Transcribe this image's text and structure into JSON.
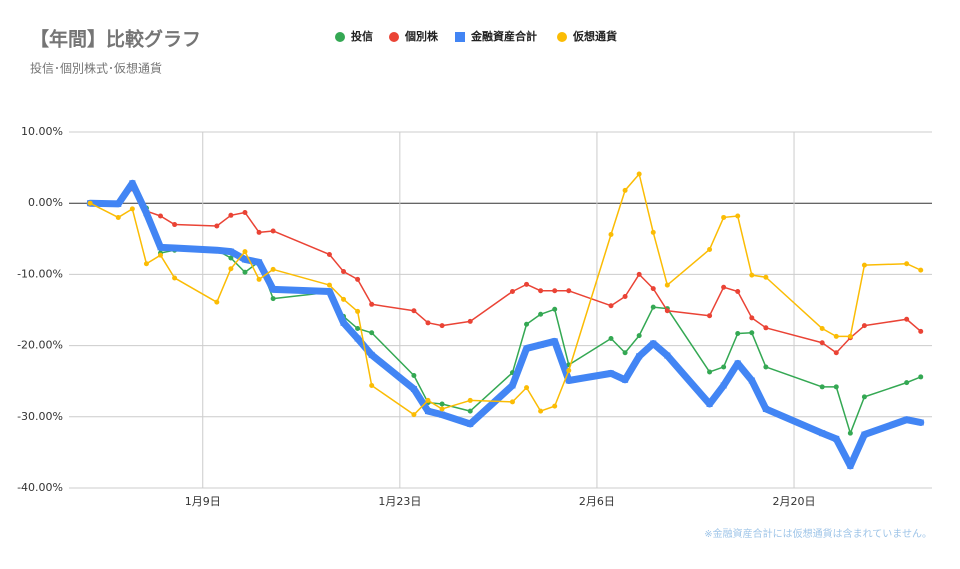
{
  "chart_data": {
    "type": "line",
    "title": "【年間】比較グラフ",
    "subtitle": "投信･個別株式･仮想通貨",
    "note": "※金融資産合計には仮想通貨は含まれていません。",
    "x": [
      1,
      3,
      4,
      5,
      6,
      7,
      10,
      11,
      12,
      13,
      14,
      18,
      19,
      20,
      21,
      24,
      25,
      26,
      28,
      31,
      32,
      33,
      34,
      35,
      38,
      39,
      40,
      41,
      42,
      45,
      46,
      47,
      48,
      49,
      53,
      54,
      55,
      56,
      59,
      60
    ],
    "xlim": [
      -0.5,
      60.8
    ],
    "xticks": [
      {
        "value": 9,
        "label": "1月9日"
      },
      {
        "value": 23,
        "label": "1月23日"
      },
      {
        "value": 37,
        "label": "2月6日"
      },
      {
        "value": 51,
        "label": "2月20日"
      }
    ],
    "ylim": [
      -40,
      10
    ],
    "yticks": [
      {
        "value": -40,
        "label": "-40.00%"
      },
      {
        "value": -30,
        "label": "-30.00%"
      },
      {
        "value": -20,
        "label": "-20.00%"
      },
      {
        "value": -10,
        "label": "-10.00%"
      },
      {
        "value": 0,
        "label": "0.00%"
      },
      {
        "value": 10,
        "label": "10.00%"
      }
    ],
    "grid": true,
    "legend": "top",
    "series": [
      {
        "name": "投信",
        "color": "#34a853",
        "marker": "circle",
        "width": 1.5,
        "values": [
          0,
          -0.1,
          2.5,
          -0.7,
          -7.0,
          -6.6,
          -6.6,
          -7.7,
          -9.7,
          -8.2,
          -13.4,
          -12.5,
          -15.9,
          -17.6,
          -18.2,
          -24.2,
          -28.0,
          -28.2,
          -29.2,
          -23.8,
          -17.0,
          -15.6,
          -14.9,
          -22.7,
          -19.0,
          -21.0,
          -18.6,
          -14.6,
          -14.8,
          -23.7,
          -23.0,
          -18.3,
          -18.2,
          -23.0,
          -25.8,
          -25.8,
          -32.3,
          -27.2,
          -25.2,
          -24.4
        ]
      },
      {
        "name": "個別株",
        "color": "#ea4335",
        "marker": "circle",
        "width": 1.5,
        "values": [
          0,
          -0.1,
          2.0,
          -1.1,
          -1.8,
          -3.0,
          -3.2,
          -1.7,
          -1.3,
          -4.1,
          -3.9,
          -7.2,
          -9.6,
          -10.7,
          -14.2,
          -15.1,
          -16.8,
          -17.2,
          -16.6,
          -12.4,
          -11.4,
          -12.3,
          -12.3,
          -12.3,
          -14.4,
          -13.1,
          -10.0,
          -12.0,
          -15.1,
          -15.8,
          -11.8,
          -12.4,
          -16.1,
          -17.5,
          -19.6,
          -21.0,
          -18.9,
          -17.2,
          -16.3,
          -18.0
        ]
      },
      {
        "name": "金融資産合計",
        "color": "#4285f4",
        "marker": "square",
        "width": 7,
        "values": [
          0,
          -0.1,
          2.8,
          -1.4,
          -6.2,
          -6.3,
          -6.6,
          -6.8,
          -7.9,
          -8.3,
          -12.1,
          -12.4,
          -16.8,
          -19.0,
          -21.3,
          -26.1,
          -29.2,
          -29.7,
          -31.0,
          -25.6,
          -20.4,
          -19.9,
          -19.4,
          -24.9,
          -23.9,
          -24.8,
          -21.5,
          -19.7,
          -21.4,
          -28.2,
          -25.6,
          -22.5,
          -24.9,
          -28.9,
          -32.3,
          -33.1,
          -36.9,
          -32.5,
          -30.4,
          -30.8
        ]
      },
      {
        "name": "仮想通貨",
        "color": "#fbbc04",
        "marker": "circle",
        "width": 1.5,
        "values": [
          0,
          -2.0,
          -0.8,
          -8.5,
          -7.3,
          -10.5,
          -13.9,
          -9.2,
          -6.8,
          -10.7,
          -9.3,
          -11.5,
          -13.5,
          -15.2,
          -25.6,
          -29.7,
          -27.7,
          -28.9,
          -27.7,
          -27.9,
          -25.9,
          -29.2,
          -28.5,
          -23.5,
          -4.4,
          1.8,
          4.1,
          -4.1,
          -11.5,
          -6.5,
          -2.0,
          -1.8,
          -10.1,
          -10.4,
          -17.6,
          -18.7,
          -18.7,
          -8.7,
          -8.5,
          -9.4
        ]
      }
    ]
  }
}
